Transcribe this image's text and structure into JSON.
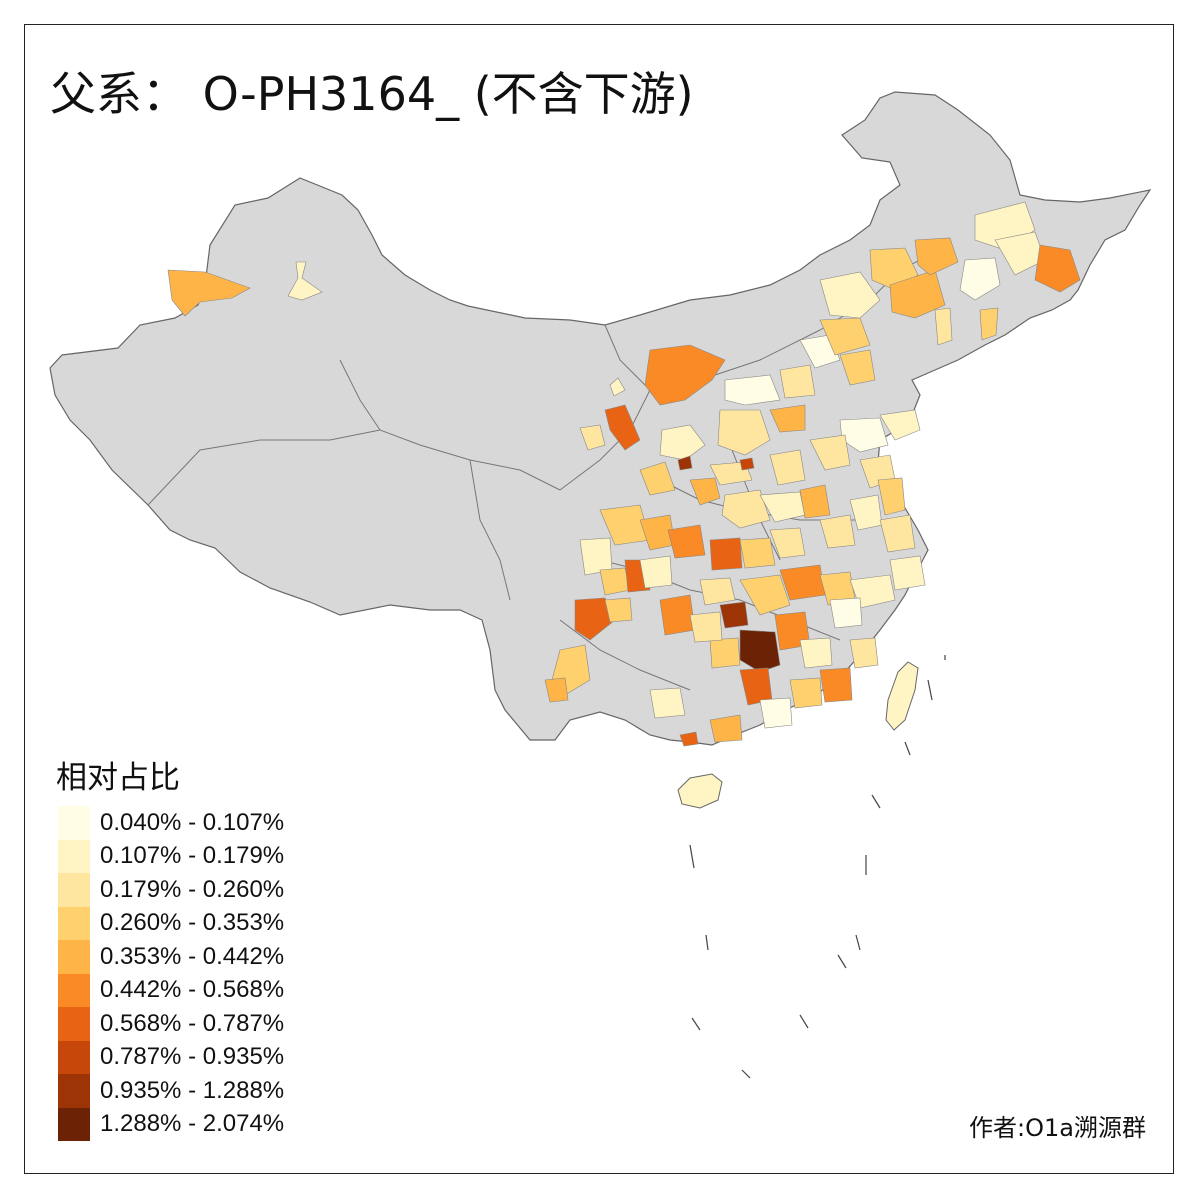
{
  "title": "父系： O-PH3164_ (不含下游)",
  "legend": {
    "title": "相对占比",
    "bins": [
      {
        "label": "0.040% - 0.107%",
        "color": "#fffde6"
      },
      {
        "label": "0.107% - 0.179%",
        "color": "#fff4c4"
      },
      {
        "label": "0.179% - 0.260%",
        "color": "#fee6a1"
      },
      {
        "label": "0.260% - 0.353%",
        "color": "#fed06e"
      },
      {
        "label": "0.353% - 0.442%",
        "color": "#feb447"
      },
      {
        "label": "0.442% - 0.568%",
        "color": "#f98a26"
      },
      {
        "label": "0.568% - 0.787%",
        "color": "#e86414"
      },
      {
        "label": "0.787% - 0.935%",
        "color": "#c7460a"
      },
      {
        "label": "0.935% - 1.288%",
        "color": "#9c3406"
      },
      {
        "label": "1.288% - 2.074%",
        "color": "#6c2205"
      }
    ]
  },
  "credit": "作者:O1a溯源群",
  "map": {
    "base_color": "#d8d8d8",
    "border_color": "#777777"
  }
}
